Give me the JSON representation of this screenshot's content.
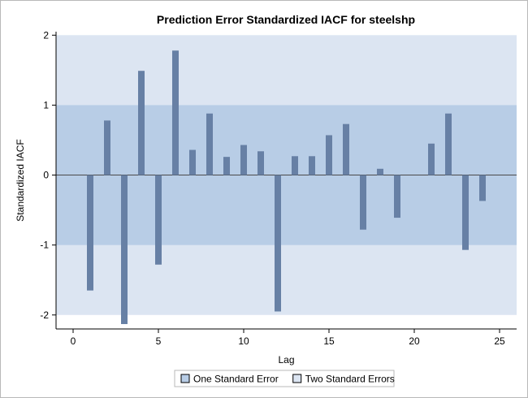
{
  "chart_data": {
    "type": "bar",
    "title": "Prediction Error Standardized IACF for steelshp",
    "xlabel": "Lag",
    "ylabel": "Standardized IACF",
    "xlim": [
      -1,
      26
    ],
    "ylim": [
      -2.2,
      2.05
    ],
    "xticks": [
      "0",
      "5",
      "10",
      "15",
      "20",
      "25"
    ],
    "yticks": [
      "-2",
      "-1",
      "0",
      "1",
      "2"
    ],
    "x": [
      1,
      2,
      3,
      4,
      5,
      6,
      7,
      8,
      9,
      10,
      11,
      12,
      13,
      14,
      15,
      16,
      17,
      18,
      19,
      20,
      21,
      22,
      23,
      24
    ],
    "values": [
      -1.65,
      0.78,
      -2.13,
      1.49,
      -1.28,
      1.78,
      0.36,
      0.88,
      0.26,
      0.43,
      0.34,
      -1.95,
      0.27,
      0.27,
      0.57,
      0.73,
      -0.78,
      0.09,
      -0.61,
      0.0,
      0.45,
      0.88,
      -1.07,
      -0.37
    ],
    "bands": [
      {
        "name": "One Standard Error",
        "lower": -1,
        "upper": 1,
        "color": "#b8cde6"
      },
      {
        "name": "Two Standard Errors",
        "lower": -2,
        "upper": 2,
        "color": "#dce5f2"
      }
    ],
    "bar_color": "#6780a5",
    "legend_position": "bottom",
    "grid": false
  }
}
